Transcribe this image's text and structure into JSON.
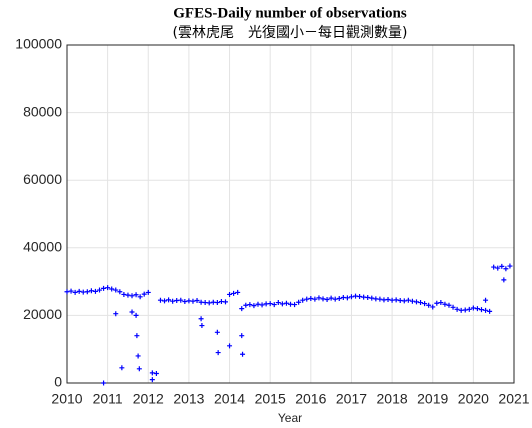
{
  "chart_data": {
    "type": "scatter",
    "title": "GFES-Daily number of observations",
    "subtitle": "(雲林虎尾　光復國小－每日觀測數量)",
    "xlabel": "Year",
    "xlim": [
      2010,
      2021
    ],
    "xticks": [
      2010,
      2011,
      2012,
      2013,
      2014,
      2015,
      2016,
      2017,
      2018,
      2019,
      2020,
      2021
    ],
    "ylim": [
      0,
      100000
    ],
    "yticks": [
      0,
      20000,
      40000,
      60000,
      80000,
      100000
    ],
    "grid": true,
    "color": "#0000ff",
    "x": [
      2010.0,
      2010.1,
      2010.2,
      2010.3,
      2010.4,
      2010.5,
      2010.6,
      2010.7,
      2010.8,
      2010.9,
      2011.0,
      2011.1,
      2011.2,
      2011.3,
      2011.4,
      2011.5,
      2011.6,
      2011.7,
      2011.8,
      2011.9,
      2012.0,
      2012.1,
      2012.2,
      2012.3,
      2012.4,
      2012.5,
      2012.6,
      2012.7,
      2012.8,
      2012.9,
      2013.0,
      2013.1,
      2013.2,
      2013.3,
      2013.4,
      2013.5,
      2013.6,
      2013.7,
      2013.8,
      2013.9,
      2014.0,
      2014.1,
      2014.2,
      2014.3,
      2014.4,
      2014.5,
      2014.6,
      2014.7,
      2014.8,
      2014.9,
      2015.0,
      2015.1,
      2015.2,
      2015.3,
      2015.4,
      2015.5,
      2015.6,
      2015.7,
      2015.8,
      2015.9,
      2016.0,
      2016.1,
      2016.2,
      2016.3,
      2016.4,
      2016.5,
      2016.6,
      2016.7,
      2016.8,
      2016.9,
      2017.0,
      2017.1,
      2017.2,
      2017.3,
      2017.4,
      2017.5,
      2017.6,
      2017.7,
      2017.8,
      2017.9,
      2018.0,
      2018.1,
      2018.2,
      2018.3,
      2018.4,
      2018.5,
      2018.6,
      2018.7,
      2018.8,
      2018.9,
      2019.0,
      2019.1,
      2019.2,
      2019.3,
      2019.4,
      2019.5,
      2019.6,
      2019.7,
      2019.8,
      2019.9,
      2020.0,
      2020.1,
      2020.2,
      2020.3,
      2020.4,
      2020.5,
      2020.6,
      2020.7,
      2020.8,
      2020.9,
      2010.9,
      2011.2,
      2011.35,
      2011.6,
      2011.7,
      2011.72,
      2011.75,
      2011.78,
      2012.1,
      2013.3,
      2013.32,
      2013.7,
      2013.72,
      2014.0,
      2014.3,
      2014.32,
      2020.3,
      2020.75
    ],
    "y": [
      27000,
      27200,
      26800,
      27100,
      26900,
      27000,
      27300,
      27100,
      27500,
      28000,
      28200,
      27800,
      27500,
      27000,
      26200,
      26000,
      25800,
      26100,
      25500,
      26300,
      26800,
      3000,
      2800,
      24500,
      24300,
      24600,
      24200,
      24400,
      24500,
      24100,
      24300,
      24200,
      24400,
      23900,
      23800,
      23700,
      23900,
      23800,
      24100,
      24000,
      26200,
      26500,
      26800,
      22000,
      23000,
      23200,
      22900,
      23300,
      23100,
      23400,
      23500,
      23200,
      23800,
      23400,
      23600,
      23300,
      23200,
      23900,
      24500,
      24800,
      25000,
      24800,
      25200,
      24900,
      24700,
      25100,
      24800,
      25000,
      25300,
      25200,
      25500,
      25700,
      25600,
      25400,
      25300,
      25100,
      24900,
      24800,
      24600,
      24700,
      24500,
      24600,
      24400,
      24300,
      24500,
      24200,
      24000,
      23800,
      23500,
      23000,
      22500,
      23600,
      23800,
      23300,
      23000,
      22400,
      21800,
      21500,
      21600,
      21800,
      22200,
      22000,
      21700,
      21500,
      21200,
      34300,
      34000,
      34500,
      33800,
      34600,
      0,
      20500,
      4500,
      21000,
      20000,
      14000,
      8000,
      4200,
      1000,
      19000,
      17000,
      15000,
      9000,
      11000,
      14000,
      8500,
      24500,
      30500
    ]
  }
}
